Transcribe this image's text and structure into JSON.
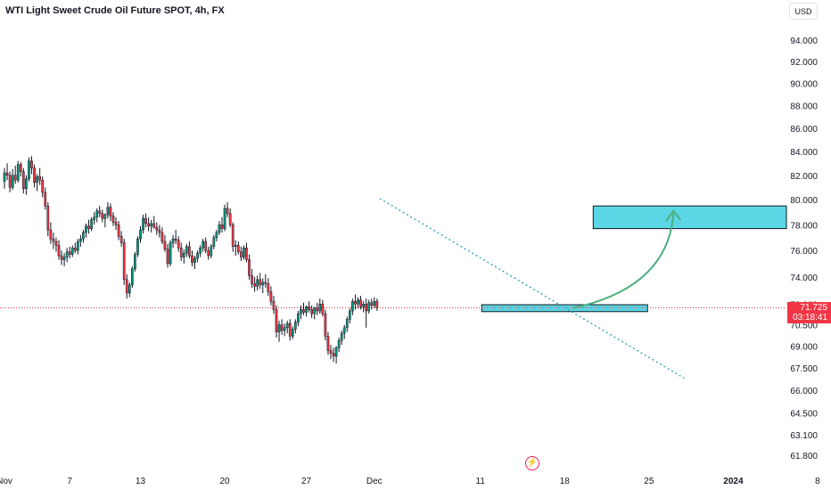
{
  "title": "WTI Light Sweet Crude Oil Future SPOT, 4h, FX",
  "currency": "USD",
  "price_badge": {
    "price": "71.725",
    "countdown": "03:18:41"
  },
  "colors": {
    "up": "#089981",
    "down": "#f23645",
    "wick": "#131722",
    "zone_fill": "#5ad6e4",
    "zone_stroke": "#131722",
    "trendline": "#26a0b0",
    "arrow": "#4caf7d",
    "price_line": "#f23645"
  },
  "icons": {
    "bolt": "lightning-icon"
  },
  "chart_data": {
    "type": "candlestick",
    "title": "WTI Light Sweet Crude Oil Future SPOT, 4h, FX",
    "ylim": [
      60.8,
      96.0
    ],
    "y_scale": "log",
    "y_ticks": [
      "94.000",
      "92.000",
      "90.000",
      "88.000",
      "86.000",
      "84.000",
      "82.000",
      "80.000",
      "78.000",
      "76.000",
      "74.000",
      "72.000",
      "70.500",
      "69.000",
      "67.500",
      "66.000",
      "64.500",
      "63.100",
      "61.800"
    ],
    "x_ticks": [
      {
        "label": "Nov",
        "bar": 0,
        "bold": false
      },
      {
        "label": "7",
        "bar": 24,
        "bold": false
      },
      {
        "label": "13",
        "bar": 50,
        "bold": false
      },
      {
        "label": "20",
        "bar": 81,
        "bold": false
      },
      {
        "label": "27",
        "bar": 111,
        "bold": false
      },
      {
        "label": "Dec",
        "bar": 136,
        "bold": false
      },
      {
        "label": "11",
        "bar": 175,
        "bold": false
      },
      {
        "label": "18",
        "bar": 206,
        "bold": false
      },
      {
        "label": "25",
        "bar": 237,
        "bold": false
      },
      {
        "label": "2024",
        "bar": 268,
        "bold": true
      },
      {
        "label": "8",
        "bar": 299,
        "bold": false
      }
    ],
    "last_price": 71.725,
    "candles": [
      [
        81.5,
        82.6,
        80.9,
        82.2
      ],
      [
        82.2,
        83.0,
        81.6,
        82.0
      ],
      [
        82.0,
        82.3,
        80.6,
        81.0
      ],
      [
        81.0,
        82.5,
        80.8,
        82.0
      ],
      [
        82.0,
        82.8,
        81.3,
        81.6
      ],
      [
        81.6,
        83.2,
        81.4,
        82.9
      ],
      [
        82.9,
        83.1,
        81.9,
        82.3
      ],
      [
        82.3,
        82.6,
        80.5,
        80.9
      ],
      [
        80.9,
        82.0,
        80.4,
        81.7
      ],
      [
        81.7,
        83.5,
        81.5,
        83.2
      ],
      [
        83.2,
        83.6,
        82.1,
        82.6
      ],
      [
        82.6,
        82.9,
        81.0,
        81.4
      ],
      [
        81.4,
        82.1,
        80.7,
        81.9
      ],
      [
        81.9,
        82.6,
        81.2,
        81.6
      ],
      [
        81.6,
        81.9,
        80.2,
        80.6
      ],
      [
        80.6,
        81.0,
        79.2,
        79.5
      ],
      [
        79.5,
        79.8,
        77.1,
        77.6
      ],
      [
        77.6,
        78.2,
        76.5,
        76.9
      ],
      [
        76.9,
        77.4,
        76.1,
        76.7
      ],
      [
        76.7,
        77.0,
        75.9,
        76.4
      ],
      [
        76.4,
        76.8,
        75.3,
        75.6
      ],
      [
        75.6,
        76.0,
        74.9,
        75.3
      ],
      [
        75.3,
        75.8,
        74.8,
        75.5
      ],
      [
        75.5,
        76.2,
        75.1,
        75.9
      ],
      [
        75.9,
        76.3,
        75.4,
        75.7
      ],
      [
        75.7,
        76.4,
        75.5,
        76.2
      ],
      [
        76.2,
        76.6,
        75.8,
        76.0
      ],
      [
        76.0,
        76.9,
        75.7,
        76.7
      ],
      [
        76.7,
        77.2,
        76.3,
        76.9
      ],
      [
        76.9,
        77.6,
        76.6,
        77.4
      ],
      [
        77.4,
        78.1,
        77.0,
        77.9
      ],
      [
        77.9,
        78.4,
        77.3,
        77.7
      ],
      [
        77.7,
        78.6,
        77.5,
        78.4
      ],
      [
        78.4,
        79.0,
        78.0,
        78.6
      ],
      [
        78.6,
        79.3,
        78.2,
        79.1
      ],
      [
        79.1,
        79.5,
        78.6,
        78.9
      ],
      [
        78.9,
        79.2,
        78.2,
        78.5
      ],
      [
        78.5,
        78.9,
        77.8,
        78.8
      ],
      [
        78.8,
        79.8,
        78.5,
        79.4
      ],
      [
        79.4,
        79.7,
        78.3,
        78.7
      ],
      [
        78.7,
        79.0,
        77.9,
        78.2
      ],
      [
        78.2,
        78.6,
        77.6,
        78.0
      ],
      [
        78.0,
        78.3,
        76.8,
        77.1
      ],
      [
        77.1,
        77.5,
        76.3,
        76.6
      ],
      [
        76.6,
        76.9,
        73.4,
        73.8
      ],
      [
        73.8,
        74.2,
        72.4,
        72.8
      ],
      [
        72.8,
        73.6,
        72.5,
        73.4
      ],
      [
        73.4,
        74.8,
        73.2,
        74.6
      ],
      [
        74.6,
        75.9,
        74.4,
        75.7
      ],
      [
        75.7,
        77.1,
        75.5,
        76.9
      ],
      [
        76.9,
        77.9,
        76.6,
        77.6
      ],
      [
        77.6,
        78.8,
        77.3,
        78.5
      ],
      [
        78.5,
        78.9,
        77.8,
        78.1
      ],
      [
        78.1,
        78.6,
        77.5,
        77.9
      ],
      [
        77.9,
        78.4,
        77.4,
        78.1
      ],
      [
        78.1,
        78.7,
        77.7,
        77.8
      ],
      [
        77.8,
        78.2,
        77.2,
        77.6
      ],
      [
        77.6,
        78.0,
        77.0,
        77.4
      ],
      [
        77.4,
        77.8,
        76.5,
        76.7
      ],
      [
        76.7,
        77.2,
        75.9,
        76.1
      ],
      [
        76.1,
        76.5,
        74.7,
        75.0
      ],
      [
        75.0,
        76.8,
        74.8,
        76.6
      ],
      [
        76.6,
        77.2,
        76.2,
        76.9
      ],
      [
        76.9,
        77.6,
        76.5,
        76.8
      ],
      [
        76.8,
        77.1,
        75.9,
        76.2
      ],
      [
        76.2,
        76.6,
        75.2,
        75.5
      ],
      [
        75.5,
        76.1,
        75.0,
        75.8
      ],
      [
        75.8,
        76.5,
        75.5,
        76.3
      ],
      [
        76.3,
        76.7,
        75.4,
        75.6
      ],
      [
        75.6,
        76.0,
        74.8,
        75.1
      ],
      [
        75.1,
        75.6,
        74.6,
        75.4
      ],
      [
        75.4,
        76.0,
        75.1,
        75.8
      ],
      [
        75.8,
        76.4,
        75.5,
        76.2
      ],
      [
        76.2,
        76.9,
        75.9,
        76.7
      ],
      [
        76.7,
        77.0,
        75.8,
        76.0
      ],
      [
        76.0,
        76.3,
        75.3,
        75.6
      ],
      [
        75.6,
        76.5,
        75.4,
        76.3
      ],
      [
        76.3,
        77.2,
        76.1,
        77.0
      ],
      [
        77.0,
        77.6,
        76.7,
        77.4
      ],
      [
        77.4,
        78.3,
        77.2,
        78.0
      ],
      [
        78.0,
        78.6,
        77.4,
        77.7
      ],
      [
        77.7,
        79.6,
        77.5,
        79.3
      ],
      [
        79.3,
        79.8,
        78.6,
        78.9
      ],
      [
        78.9,
        79.3,
        77.8,
        78.0
      ],
      [
        78.0,
        78.2,
        75.9,
        76.3
      ],
      [
        76.3,
        76.8,
        75.6,
        76.4
      ],
      [
        76.4,
        76.7,
        75.7,
        75.9
      ],
      [
        75.9,
        76.3,
        75.2,
        75.5
      ],
      [
        75.5,
        76.4,
        75.3,
        76.2
      ],
      [
        76.2,
        76.6,
        75.1,
        75.3
      ],
      [
        75.3,
        75.7,
        73.8,
        74.1
      ],
      [
        74.1,
        74.6,
        73.2,
        73.5
      ],
      [
        73.5,
        74.0,
        72.9,
        73.3
      ],
      [
        73.3,
        74.1,
        73.0,
        73.8
      ],
      [
        73.8,
        74.3,
        73.1,
        73.4
      ],
      [
        73.4,
        73.9,
        72.8,
        73.6
      ],
      [
        73.6,
        74.2,
        73.2,
        73.5
      ],
      [
        73.5,
        73.9,
        72.6,
        72.9
      ],
      [
        72.9,
        73.3,
        71.9,
        72.2
      ],
      [
        72.2,
        72.6,
        71.3,
        71.6
      ],
      [
        71.6,
        71.9,
        69.6,
        70.0
      ],
      [
        70.0,
        70.8,
        69.3,
        70.5
      ],
      [
        70.5,
        70.9,
        69.8,
        70.1
      ],
      [
        70.1,
        70.6,
        69.7,
        70.3
      ],
      [
        70.3,
        70.8,
        69.9,
        70.6
      ],
      [
        70.6,
        70.9,
        69.4,
        69.7
      ],
      [
        69.7,
        70.4,
        69.5,
        70.2
      ],
      [
        70.2,
        70.9,
        69.9,
        70.7
      ],
      [
        70.7,
        71.5,
        70.4,
        71.3
      ],
      [
        71.3,
        71.9,
        70.9,
        71.6
      ],
      [
        71.6,
        72.1,
        71.2,
        71.4
      ],
      [
        71.4,
        71.9,
        71.1,
        71.8
      ],
      [
        71.8,
        72.2,
        71.4,
        71.6
      ],
      [
        71.6,
        71.9,
        71.0,
        71.3
      ],
      [
        71.3,
        71.8,
        70.9,
        71.7
      ],
      [
        71.7,
        72.1,
        71.2,
        71.5
      ],
      [
        71.5,
        72.4,
        71.3,
        72.0
      ],
      [
        72.0,
        72.3,
        71.1,
        71.3
      ],
      [
        71.3,
        71.6,
        69.4,
        69.7
      ],
      [
        69.7,
        70.0,
        68.4,
        68.7
      ],
      [
        68.7,
        69.1,
        68.1,
        68.5
      ],
      [
        68.5,
        68.9,
        67.9,
        68.3
      ],
      [
        68.3,
        69.0,
        67.8,
        68.9
      ],
      [
        68.9,
        69.6,
        68.6,
        69.4
      ],
      [
        69.4,
        70.1,
        69.1,
        69.9
      ],
      [
        69.9,
        70.5,
        69.5,
        70.3
      ],
      [
        70.3,
        71.1,
        70.0,
        70.9
      ],
      [
        70.9,
        71.7,
        70.6,
        71.5
      ],
      [
        71.5,
        72.4,
        71.2,
        72.2
      ],
      [
        72.2,
        72.7,
        71.6,
        72.0
      ],
      [
        72.0,
        72.5,
        71.7,
        72.3
      ],
      [
        72.3,
        72.6,
        71.6,
        71.8
      ],
      [
        71.8,
        72.2,
        71.4,
        72.0
      ],
      [
        72.0,
        72.4,
        70.3,
        71.5
      ],
      [
        71.5,
        72.3,
        71.3,
        72.1
      ],
      [
        72.1,
        72.4,
        71.6,
        71.9
      ],
      [
        71.9,
        72.5,
        71.7,
        72.2
      ],
      [
        72.2,
        72.4,
        71.5,
        71.725
      ]
    ],
    "annotations": {
      "price_line": 71.725,
      "resistance_zone": {
        "start_bar": 216.5,
        "end_bar": 310,
        "low": 77.7,
        "high": 79.5
      },
      "support_zone": {
        "start_bar": 175.5,
        "end_bar": 236.5,
        "low": 71.45,
        "high": 71.95
      },
      "trendline": {
        "start_bar": 138,
        "start_price": 80.1,
        "end_bar": 250,
        "end_price": 66.8
      },
      "arrow": {
        "start_bar": 209,
        "start_price": 71.7,
        "end_bar": 246,
        "end_price": 79.1
      }
    }
  }
}
